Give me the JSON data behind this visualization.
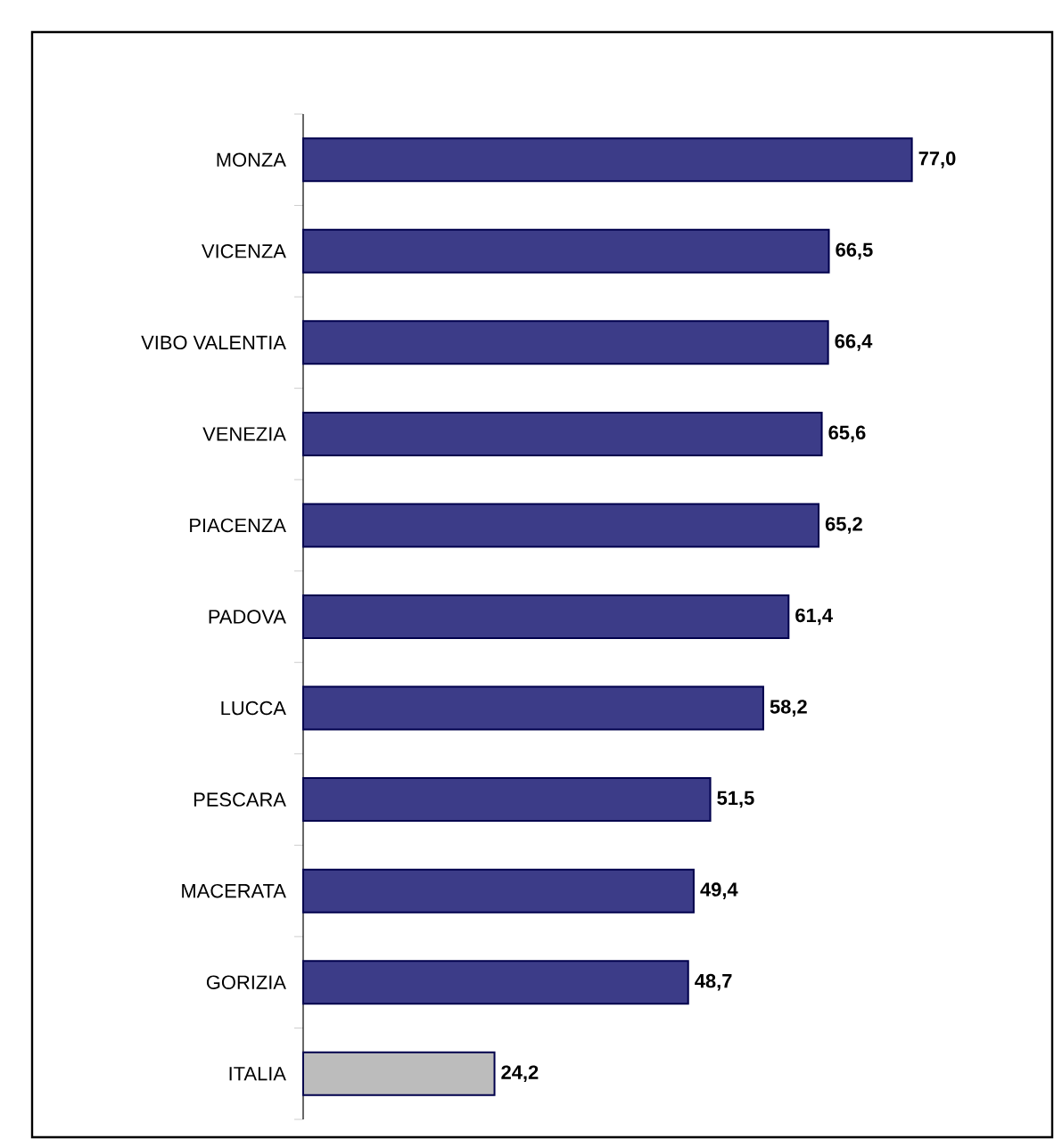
{
  "chart_data": {
    "type": "bar",
    "orientation": "horizontal",
    "relative": false,
    "categories": [
      "MONZA",
      "VICENZA",
      "VIBO VALENTIA",
      "VENEZIA",
      "PIACENZA",
      "PADOVA",
      "LUCCA",
      "PESCARA",
      "MACERATA",
      "GORIZIA",
      "ITALIA"
    ],
    "values": [
      77.0,
      66.5,
      66.4,
      65.6,
      65.2,
      61.4,
      58.2,
      51.5,
      49.4,
      48.7,
      24.2
    ],
    "value_labels": [
      "77,0",
      "66,5",
      "66,4",
      "65,6",
      "65,2",
      "61,4",
      "58,2",
      "51,5",
      "49,4",
      "48,7",
      "24,2"
    ],
    "colors": [
      "#3c3c88",
      "#3c3c88",
      "#3c3c88",
      "#3c3c88",
      "#3c3c88",
      "#3c3c88",
      "#3c3c88",
      "#3c3c88",
      "#3c3c88",
      "#3c3c88",
      "#bcbcbc"
    ]
  }
}
